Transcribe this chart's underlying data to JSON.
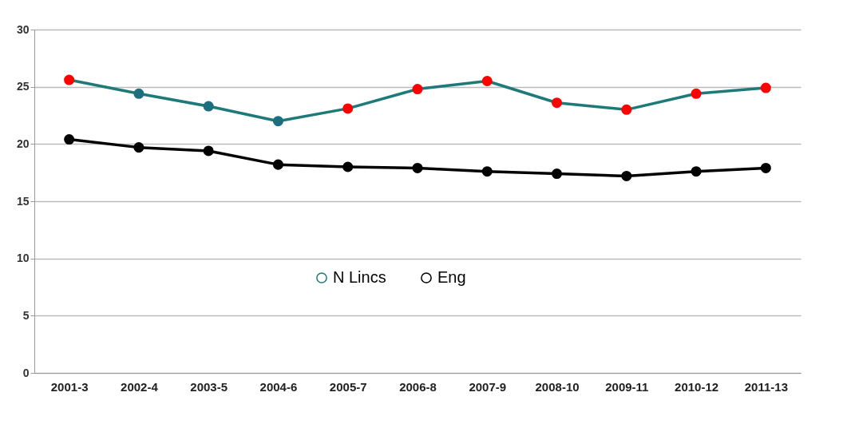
{
  "chart_data": {
    "type": "line",
    "categories": [
      "2001-3",
      "2002-4",
      "2003-5",
      "2004-6",
      "2005-7",
      "2006-8",
      "2007-9",
      "2008-10",
      "2009-11",
      "2010-12",
      "2011-13"
    ],
    "series": [
      {
        "name": "N Lincs",
        "color": "#1d7a78",
        "colors": [
          "#ff0000",
          "#1d6f80",
          "#1d6f80",
          "#1d6f80",
          "#ff0000",
          "#ff0000",
          "#ff0000",
          "#ff0000",
          "#ff0000",
          "#ff0000",
          "#ff0000"
        ],
        "values": [
          25.6,
          24.4,
          23.3,
          22.0,
          23.1,
          24.8,
          25.5,
          23.6,
          23.0,
          24.4,
          24.9
        ]
      },
      {
        "name": "Eng",
        "color": "#000000",
        "values": [
          20.4,
          19.7,
          19.4,
          18.2,
          18.0,
          17.9,
          17.6,
          17.4,
          17.2,
          17.6,
          17.9
        ]
      }
    ],
    "ylim": [
      0,
      30
    ],
    "yticks": [
      0,
      5,
      10,
      15,
      20,
      25,
      30
    ],
    "grid": "y",
    "legend": "center",
    "marker": "circle",
    "line_style": "solid"
  }
}
